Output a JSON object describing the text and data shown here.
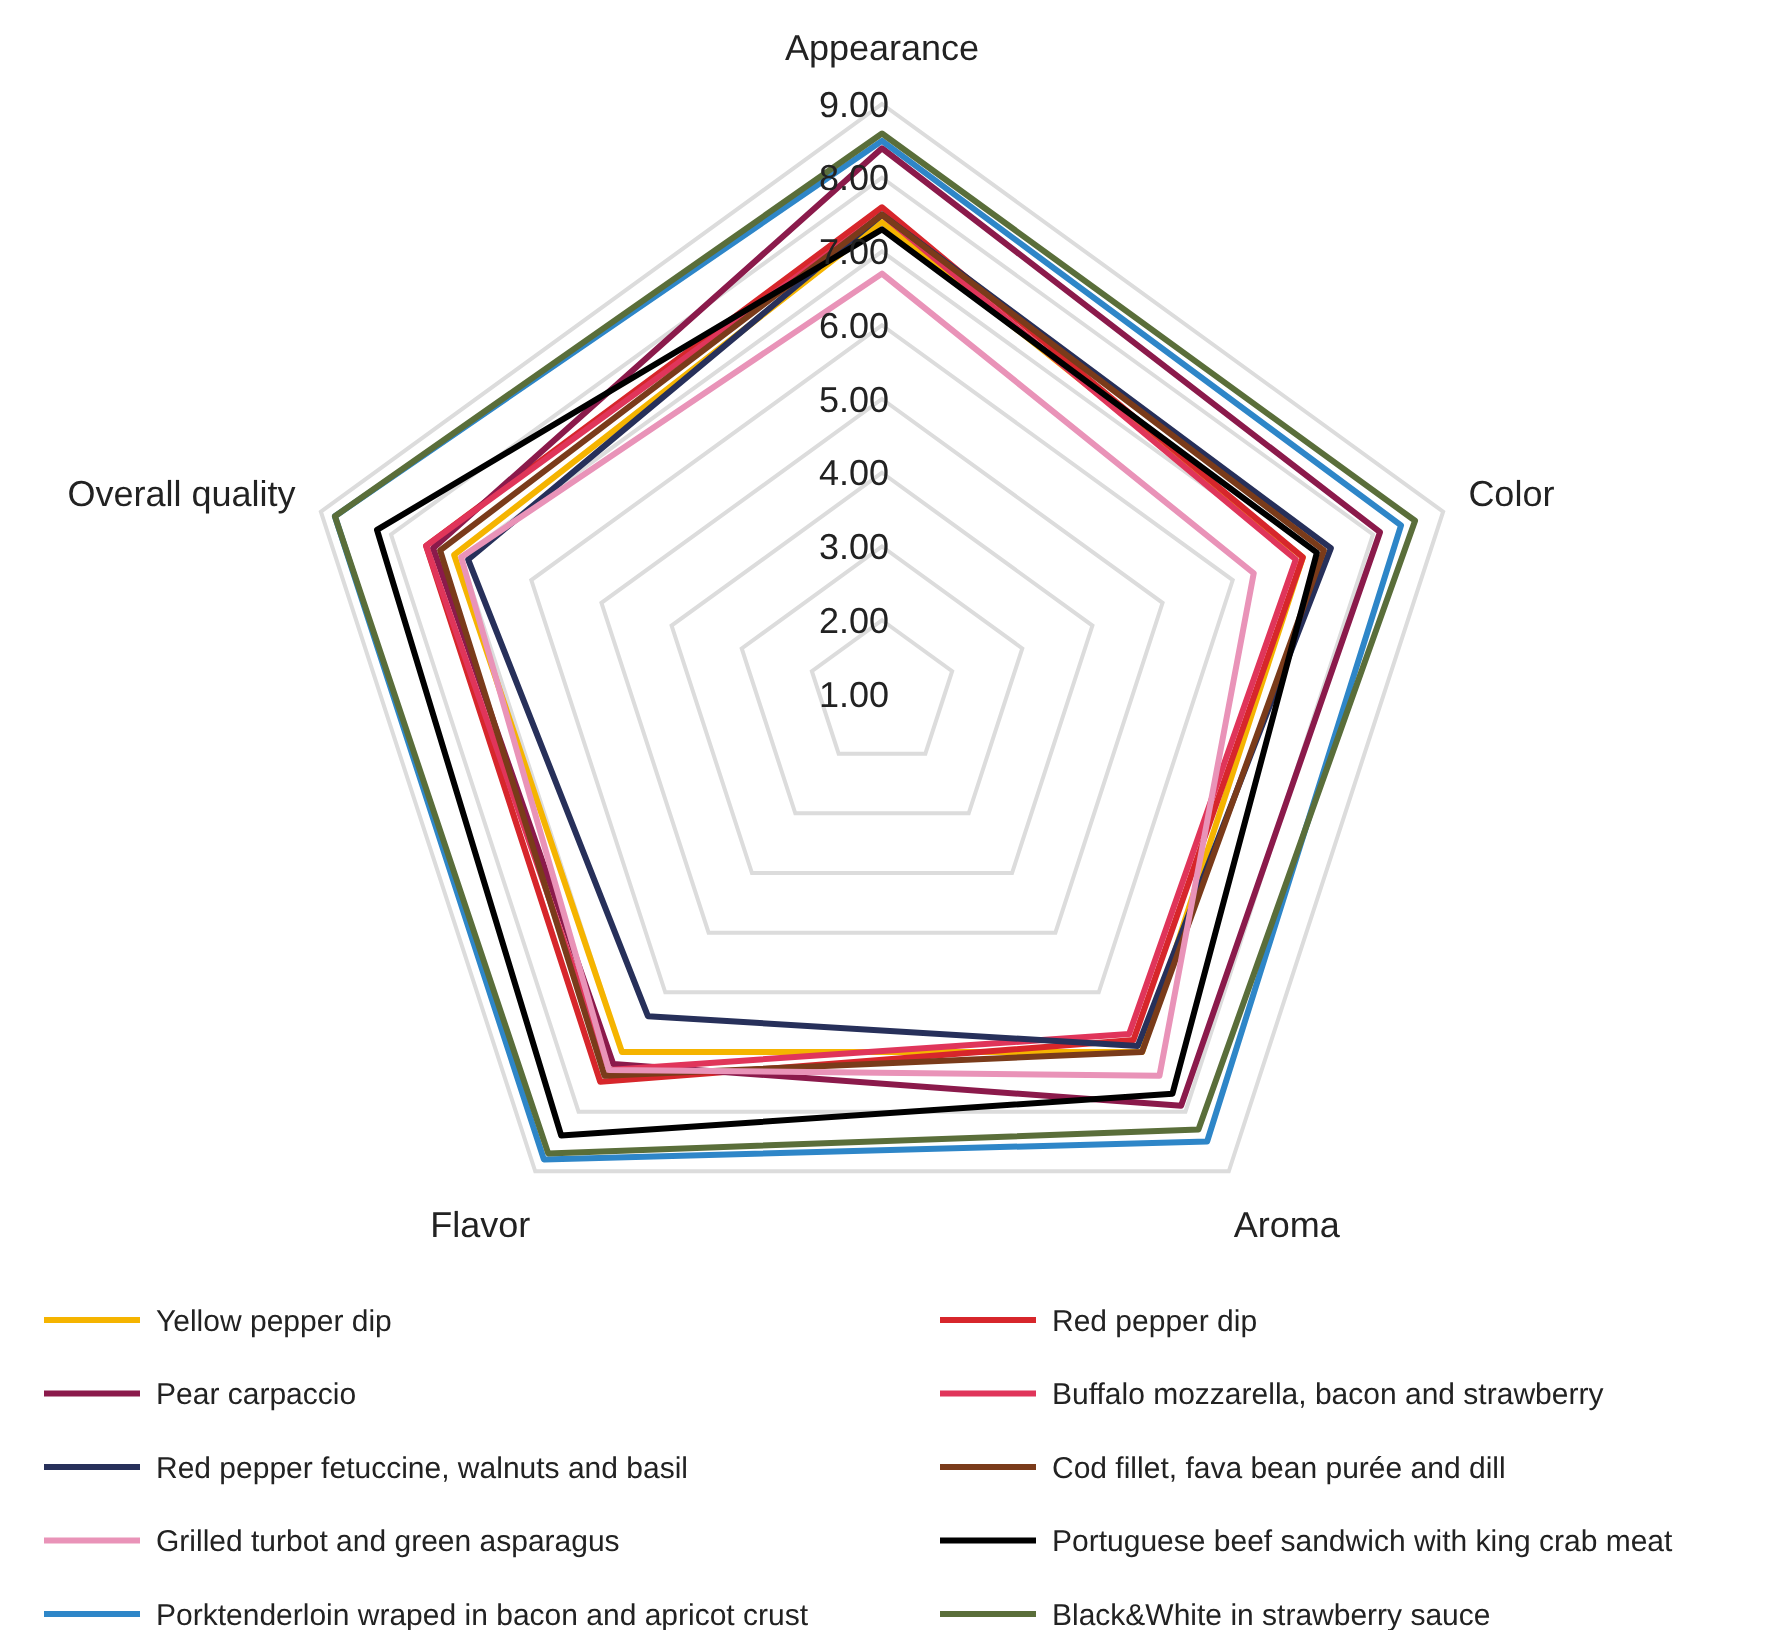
{
  "chart_data": {
    "type": "radar",
    "categories": [
      "Appearance",
      "Color",
      "Aroma",
      "Flavor",
      "Overall quality"
    ],
    "ylim": [
      1,
      9
    ],
    "yticks": [
      {
        "value": 1,
        "label": "1.00"
      },
      {
        "value": 2,
        "label": "2.00"
      },
      {
        "value": 3,
        "label": "3.00"
      },
      {
        "value": 4,
        "label": "4.00"
      },
      {
        "value": 5,
        "label": "5.00"
      },
      {
        "value": 6,
        "label": "6.00"
      },
      {
        "value": 7,
        "label": "7.00"
      },
      {
        "value": 8,
        "label": "8.00"
      },
      {
        "value": 9,
        "label": "9.00"
      }
    ],
    "grid": true,
    "legend": "bottom",
    "series": [
      {
        "name": "Yellow pepper dip",
        "color": "#f5b400",
        "values": [
          7.4,
          7.0,
          7.0,
          7.0,
          7.1
        ]
      },
      {
        "name": "Red pepper dip",
        "color": "#d7262b",
        "values": [
          7.6,
          7.0,
          6.8,
          7.5,
          7.5
        ]
      },
      {
        "name": "Pear carpaccio",
        "color": "#8b1a4b",
        "values": [
          8.4,
          8.1,
          7.9,
          7.2,
          7.4
        ]
      },
      {
        "name": "Buffalo mozzarella, bacon and strawberry",
        "color": "#e0355a",
        "values": [
          7.5,
          6.9,
          6.7,
          7.3,
          7.5
        ]
      },
      {
        "name": "Red pepper fetuccine, walnuts and basil",
        "color": "#27305a",
        "values": [
          7.5,
          7.4,
          6.9,
          6.4,
          6.9
        ]
      },
      {
        "name": "Cod fillet, fava bean purée and dill",
        "color": "#7a3b1a",
        "values": [
          7.5,
          7.3,
          7.0,
          7.4,
          7.3
        ]
      },
      {
        "name": "Grilled turbot and green asparagus",
        "color": "#e993b8",
        "values": [
          6.7,
          6.3,
          7.4,
          7.3,
          7.0
        ]
      },
      {
        "name": "Portuguese beef sandwich with king crab meat",
        "color": "#000000",
        "values": [
          7.3,
          7.2,
          7.7,
          8.4,
          8.2
        ]
      },
      {
        "name": "Porktenderloin wraped in bacon and apricot crust",
        "color": "#2e86c8",
        "values": [
          8.5,
          8.4,
          8.5,
          8.8,
          8.8
        ]
      },
      {
        "name": "Black&White in strawberry sauce",
        "color": "#5a6e3a",
        "values": [
          8.6,
          8.6,
          8.3,
          8.7,
          8.8
        ]
      }
    ]
  }
}
